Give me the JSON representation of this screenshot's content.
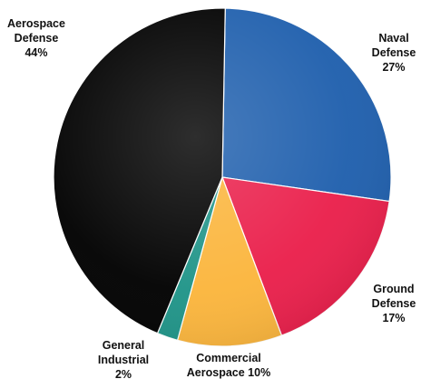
{
  "chart_data": {
    "type": "pie",
    "slices": [
      {
        "label_lines": [
          "Naval",
          "Defense",
          "27%"
        ],
        "value": 27,
        "color": "#1f5fad"
      },
      {
        "label_lines": [
          "Ground",
          "Defense",
          "17%"
        ],
        "value": 17,
        "color": "#ea1f4b"
      },
      {
        "label_lines": [
          "Commercial",
          "Aerospace 10%"
        ],
        "value": 10,
        "color": "#fbb53c"
      },
      {
        "label_lines": [
          "General",
          "Industrial",
          "2%"
        ],
        "value": 2,
        "color": "#1f9488"
      },
      {
        "label_lines": [
          "Aerospace",
          "Defense",
          "44%"
        ],
        "value": 44,
        "color": "#000000"
      }
    ],
    "legend": "none"
  }
}
